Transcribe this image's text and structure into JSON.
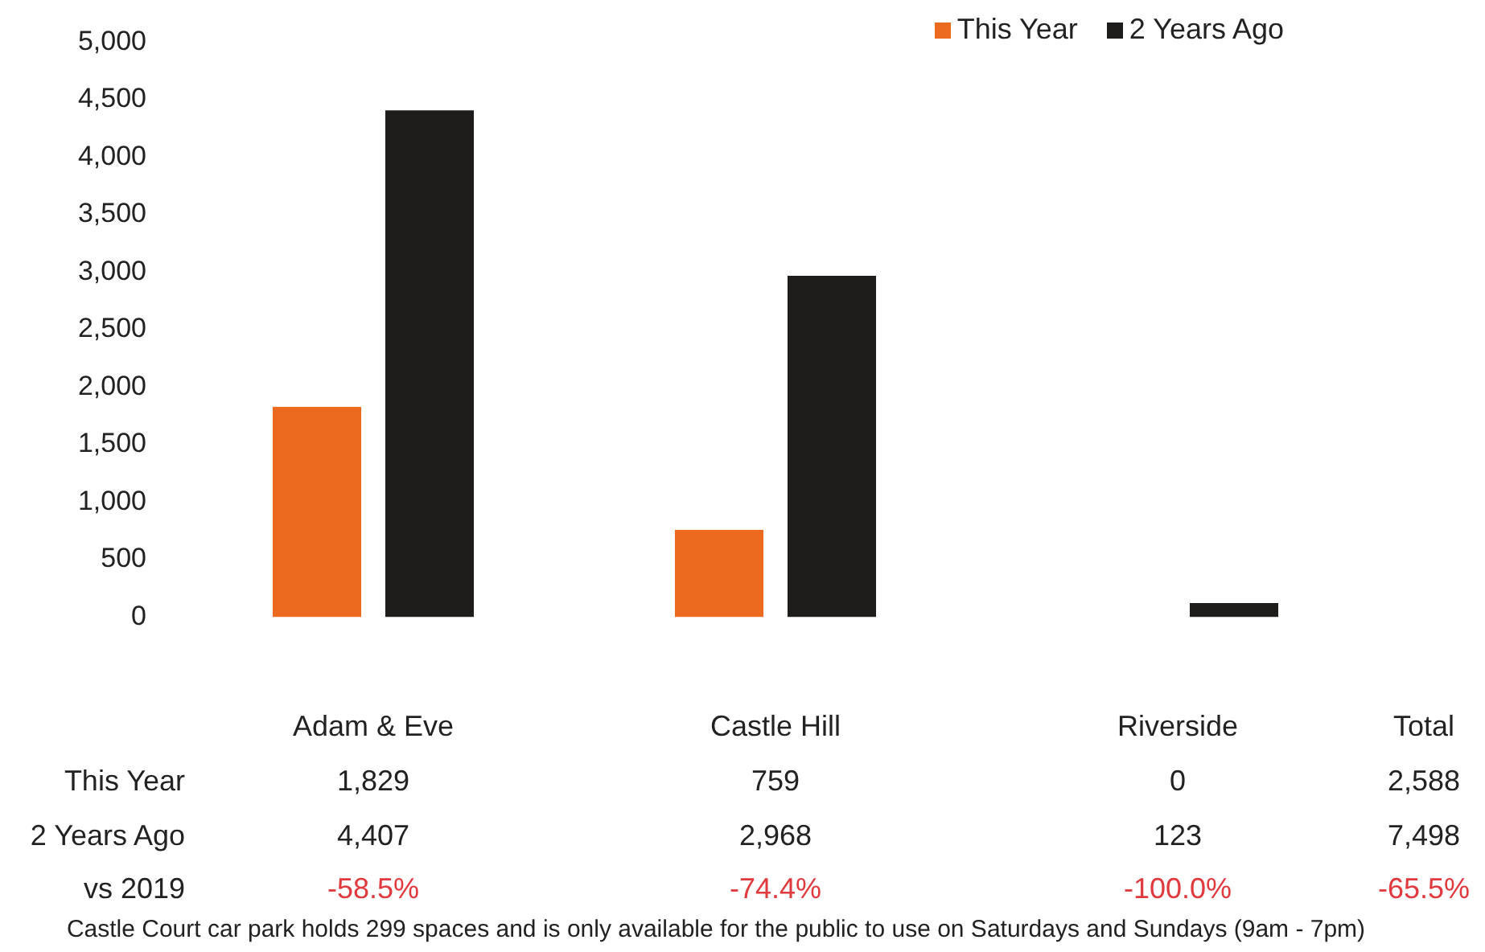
{
  "chart_data": {
    "type": "bar",
    "categories": [
      "Adam & Eve",
      "Castle Hill",
      "Riverside"
    ],
    "series": [
      {
        "name": "This Year",
        "color": "#ec6a1f",
        "values": [
          1829,
          759,
          0
        ],
        "value_labels": [
          "1,829",
          "759",
          "0"
        ]
      },
      {
        "name": "2 Years Ago",
        "color": "#1f1d1b",
        "values": [
          4407,
          2968,
          123
        ],
        "value_labels": [
          "4,407",
          "2,968",
          "123"
        ]
      }
    ],
    "ylim": [
      0,
      5000
    ],
    "yticks": [
      0,
      500,
      {
        "value": 1000,
        "label": "1,000"
      },
      {
        "value": 1500,
        "label": "1,500"
      },
      {
        "value": 2000,
        "label": "2,000"
      },
      {
        "value": 2500,
        "label": "2,500"
      },
      {
        "value": 3000,
        "label": "3,000"
      },
      {
        "value": 3500,
        "label": "3,500"
      },
      {
        "value": 4000,
        "label": "4,000"
      },
      {
        "value": 4500,
        "label": "4,500"
      },
      {
        "value": 5000,
        "label": "5,000"
      }
    ],
    "grid": false,
    "legend": "top right",
    "annotations": [
      "Total",
      "2,588",
      "7,498",
      "vs 2019",
      "-58.5%",
      "-74.4%",
      "-100.0%",
      "-65.5%",
      "Castle Court car park holds 299 spaces and is only available for the public to use on Saturdays and Sundays (9am - 7pm)"
    ]
  }
}
